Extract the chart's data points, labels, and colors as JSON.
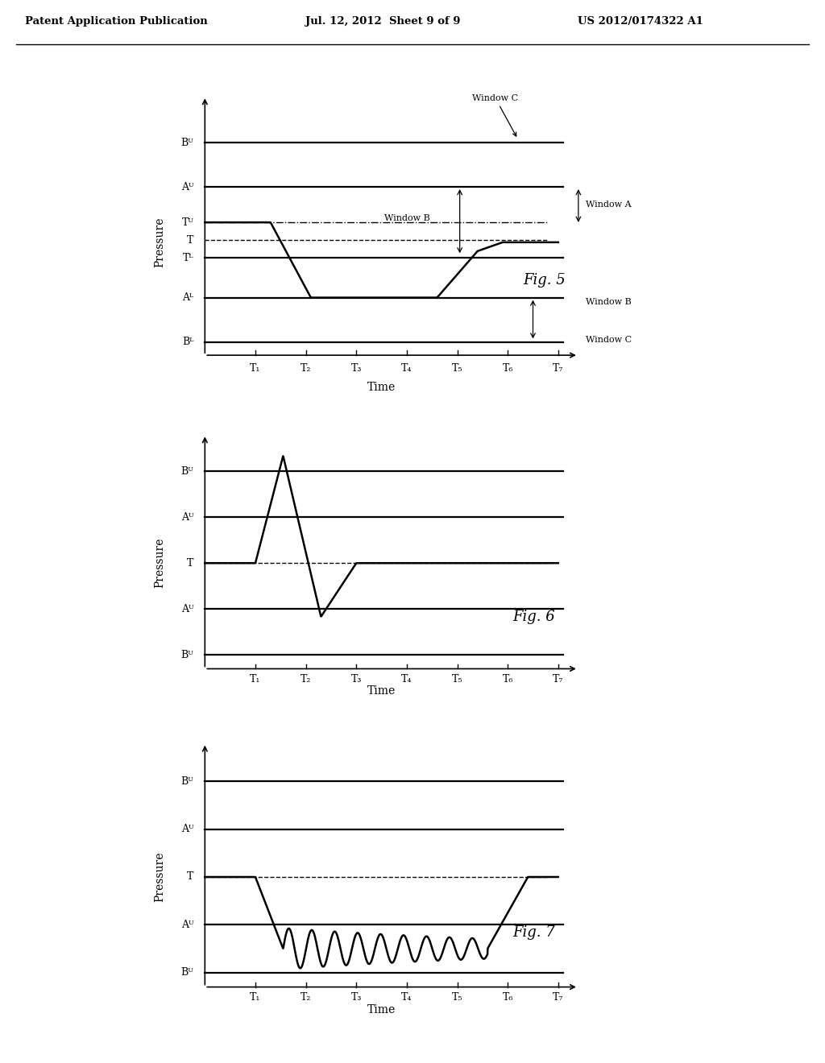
{
  "header_left": "Patent Application Publication",
  "header_mid": "Jul. 12, 2012  Sheet 9 of 9",
  "header_right": "US 2012/0174322 A1",
  "background_color": "#ffffff",
  "fig5": {
    "title": "Fig. 5",
    "ylabel": "Pressure",
    "xlabel": "Time",
    "levels": {
      "Bu": 7.0,
      "Au": 6.0,
      "Tu": 5.2,
      "T": 4.8,
      "TL": 4.4,
      "AL": 3.5,
      "BL": 2.5
    }
  },
  "fig6": {
    "title": "Fig. 6",
    "ylabel": "Pressure",
    "xlabel": "Time",
    "levels": {
      "Bu": 6.0,
      "Au": 4.5,
      "T": 3.0,
      "AL": 1.5,
      "BL": 0.0
    }
  },
  "fig7": {
    "title": "Fig. 7",
    "ylabel": "Pressure",
    "xlabel": "Time",
    "levels": {
      "Bu": 6.0,
      "Au": 4.5,
      "T": 3.0,
      "AL": 1.5,
      "BL": 0.0
    }
  }
}
